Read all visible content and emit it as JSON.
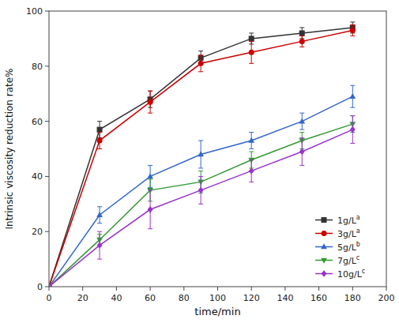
{
  "chart_data": {
    "type": "line",
    "xlabel": "time/min",
    "ylabel": "Intrinsic viscosity reduction rate%",
    "x": [
      0,
      30,
      60,
      90,
      120,
      150,
      180
    ],
    "series": [
      {
        "name": "1g/L",
        "superscript": "a",
        "color": "#333333",
        "marker": "square",
        "values": [
          0,
          57,
          68,
          83,
          90,
          92,
          94
        ],
        "yerr": [
          0,
          3,
          3,
          2.5,
          2,
          2,
          2
        ]
      },
      {
        "name": "3g/L",
        "superscript": "a",
        "color": "#cc0000",
        "marker": "circle",
        "values": [
          0,
          53,
          67,
          81,
          85,
          89,
          93
        ],
        "yerr": [
          0,
          3,
          4,
          3,
          4,
          2,
          2
        ]
      },
      {
        "name": "5g/L",
        "superscript": "b",
        "color": "#3366cc",
        "marker": "triangle-up",
        "values": [
          0,
          26,
          40,
          48,
          53,
          60,
          69
        ],
        "yerr": [
          0,
          3,
          4,
          5,
          3,
          3,
          4
        ]
      },
      {
        "name": "7g/L",
        "superscript": "c",
        "color": "#339933",
        "marker": "triangle-down",
        "values": [
          0,
          17,
          35,
          38,
          46,
          53,
          59
        ],
        "yerr": [
          0,
          2,
          4,
          4,
          3,
          3,
          3
        ]
      },
      {
        "name": "10g/L",
        "superscript": "c",
        "color": "#9933cc",
        "marker": "diamond",
        "values": [
          0,
          15,
          28,
          35,
          42,
          49,
          57
        ],
        "yerr": [
          0,
          5,
          7,
          5,
          4,
          5,
          5
        ]
      }
    ],
    "xlim": [
      0,
      200
    ],
    "ylim": [
      0,
      100
    ],
    "xticks": [
      0,
      20,
      40,
      60,
      80,
      100,
      120,
      140,
      160,
      180,
      200
    ],
    "yticks": [
      0,
      20,
      40,
      60,
      80,
      100
    ],
    "grid": false,
    "legend": "lower right"
  }
}
